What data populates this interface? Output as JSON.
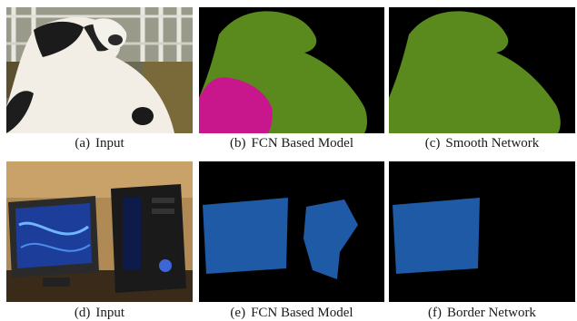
{
  "figure": {
    "panels": [
      {
        "tag": "(a)",
        "caption": "Input"
      },
      {
        "tag": "(b)",
        "caption": "FCN Based Model"
      },
      {
        "tag": "(c)",
        "caption": "Smooth Network"
      },
      {
        "tag": "(d)",
        "caption": "Input"
      },
      {
        "tag": "(e)",
        "caption": "FCN Based Model"
      },
      {
        "tag": "(f)",
        "caption": "Border Network"
      }
    ],
    "colors": {
      "background": "#000000",
      "cow_class": "#5a8a1e",
      "person_class": "#c8168c",
      "monitor_class": "#1f5aa6"
    }
  }
}
